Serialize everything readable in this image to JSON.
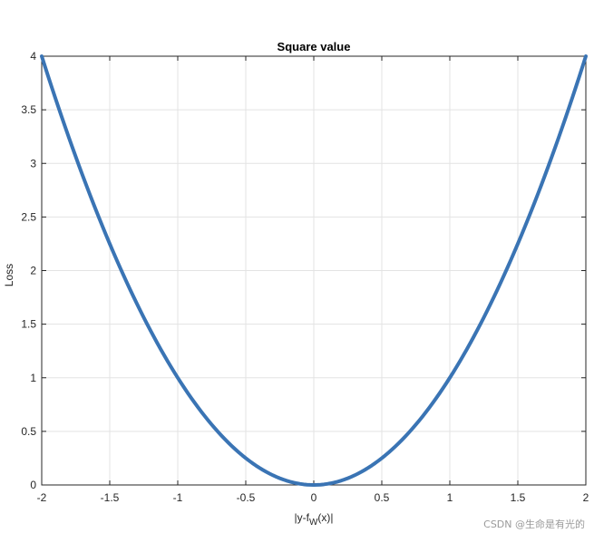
{
  "chart_data": {
    "type": "line",
    "title": "Square value",
    "xlabel_main": "|y-f",
    "xlabel_sub": "W",
    "xlabel_tail": "(x)|",
    "ylabel": "Loss",
    "xlim": [
      -2,
      2
    ],
    "ylim": [
      0,
      4
    ],
    "grid": true,
    "xticks": [
      -2,
      -1.5,
      -1,
      -0.5,
      0,
      0.5,
      1,
      1.5,
      2
    ],
    "xtick_labels": [
      "-2",
      "-1.5",
      "-1",
      "-0.5",
      "0",
      "0.5",
      "1",
      "1.5",
      "2"
    ],
    "yticks": [
      0,
      0.5,
      1,
      1.5,
      2,
      2.5,
      3,
      3.5,
      4
    ],
    "ytick_labels": [
      "0",
      "0.5",
      "1",
      "1.5",
      "2",
      "2.5",
      "3",
      "3.5",
      "4"
    ],
    "series": [
      {
        "color": "#3a74b4",
        "x": [
          -2,
          -1.75,
          -1.5,
          -1.25,
          -1,
          -0.75,
          -0.5,
          -0.25,
          0,
          0.25,
          0.5,
          0.75,
          1,
          1.25,
          1.5,
          1.75,
          2
        ],
        "y": [
          4,
          3.0625,
          2.25,
          1.5625,
          1,
          0.5625,
          0.25,
          0.0625,
          0,
          0.0625,
          0.25,
          0.5625,
          1,
          1.5625,
          2.25,
          3.0625,
          4
        ]
      }
    ]
  },
  "watermark": "CSDN @生命是有光的"
}
